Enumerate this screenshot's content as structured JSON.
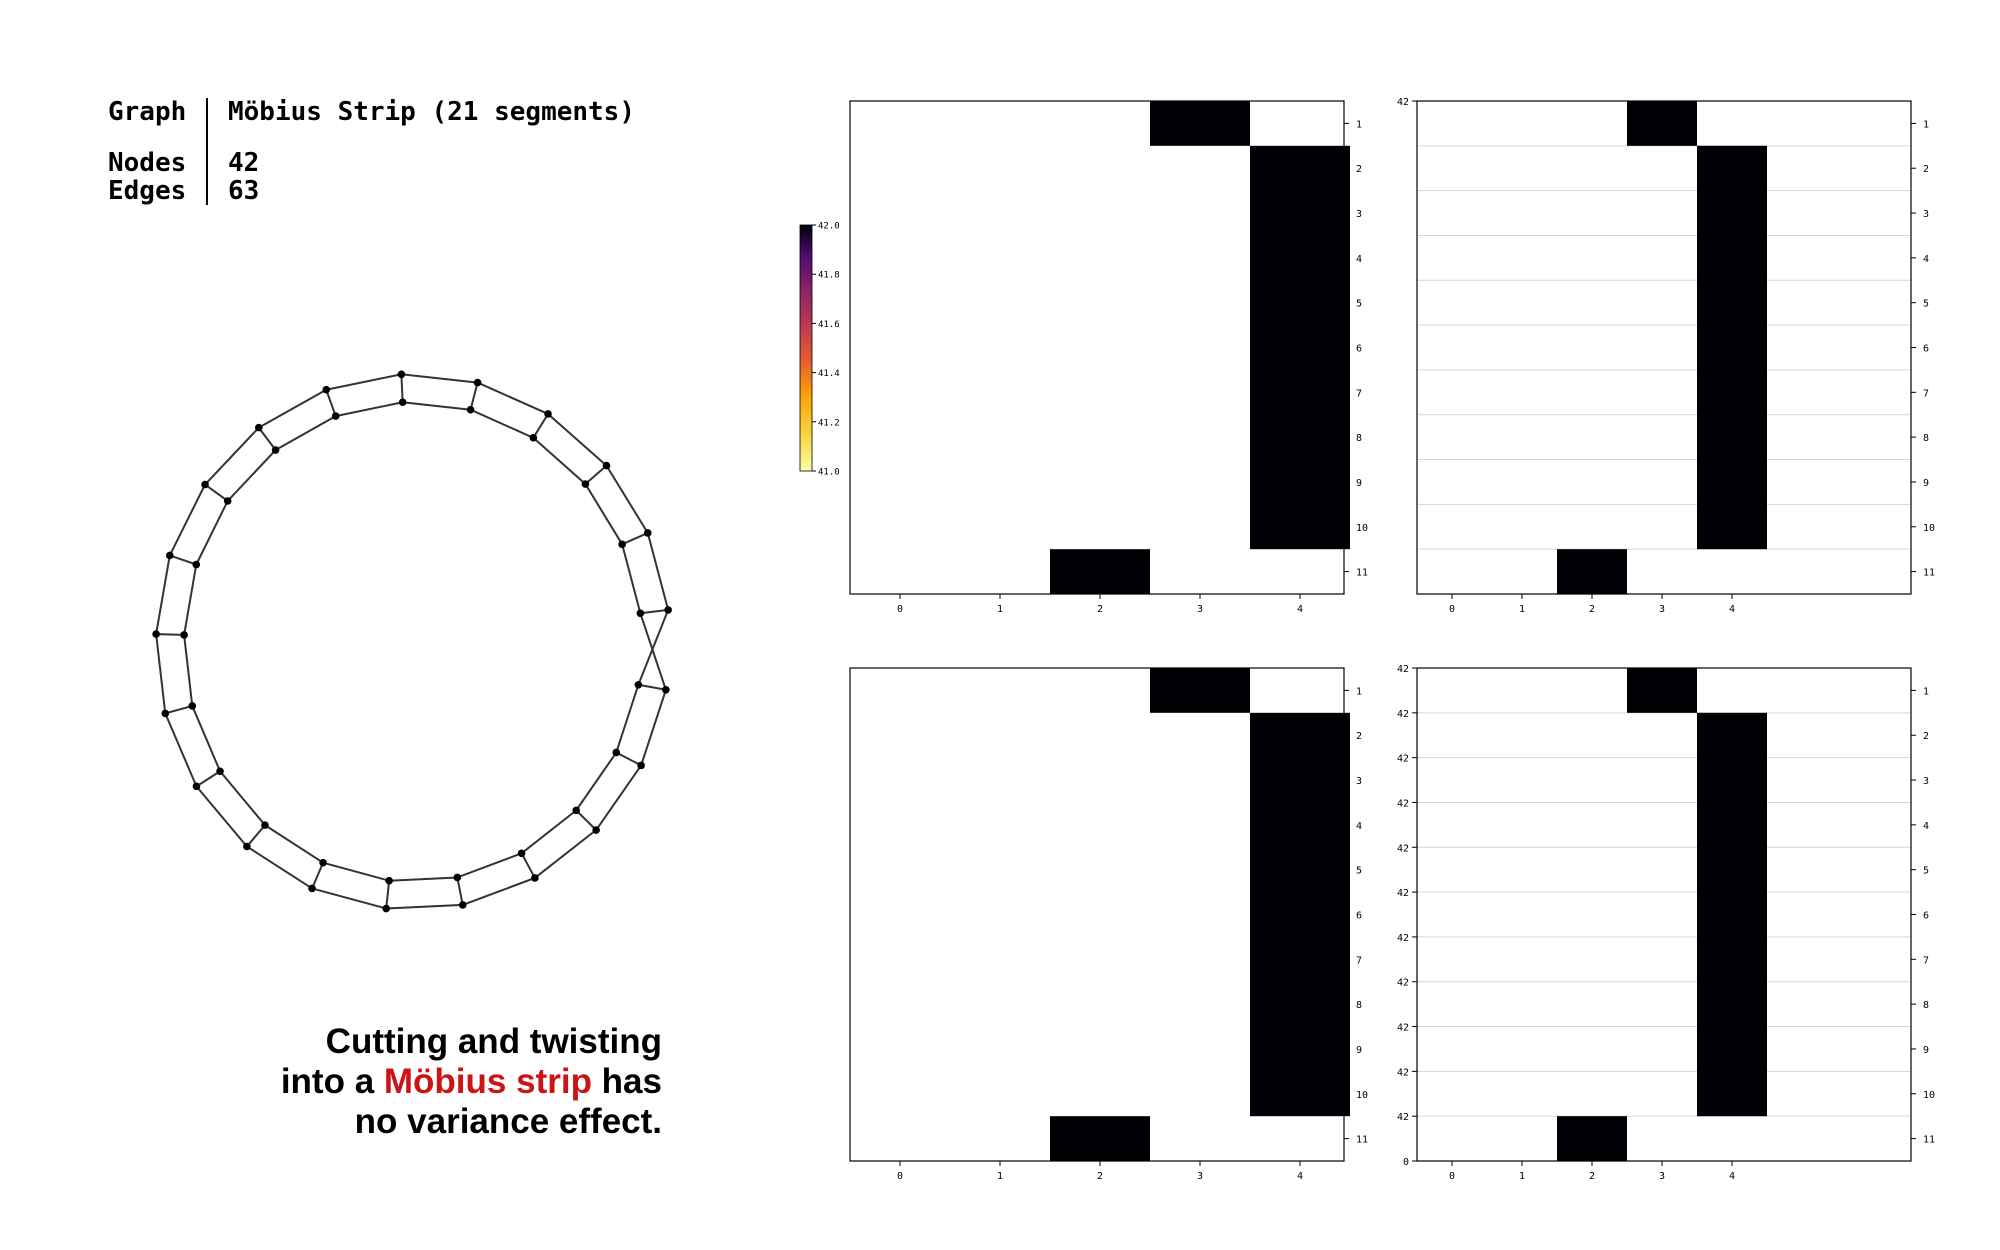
{
  "info": {
    "graph_label": "Graph",
    "graph_value": "Möbius Strip (21 segments)",
    "nodes_label": "Nodes",
    "nodes_value": "42",
    "edges_label": "Edges",
    "edges_value": "63"
  },
  "message": {
    "line1": "Cutting and twisting",
    "line2_pre": "into a ",
    "line2_highlight": "Möbius strip",
    "line2_post": " has",
    "line3": "no variance effect."
  },
  "colors": {
    "highlight": "#cc1414",
    "cell_on": "#000004",
    "cell_off": "#ffffff"
  },
  "colorbar": {
    "ticks": [
      "42.0",
      "41.8",
      "41.6",
      "41.4",
      "41.2",
      "41.0"
    ],
    "cmap": "inferno_r"
  },
  "chart_data": [
    {
      "type": "heatmap",
      "x_ticks": [
        "0",
        "1",
        "2",
        "3",
        "4"
      ],
      "y_ticks": [
        "1",
        "2",
        "3",
        "4",
        "5",
        "6",
        "7",
        "8",
        "9",
        "10",
        "11"
      ],
      "filled_cells": [
        {
          "row": 1,
          "col_from": 3,
          "col_to": 3
        },
        {
          "row_from": 2,
          "row_to": 10,
          "col": 4
        },
        {
          "row": 11,
          "col_from": 2,
          "col_to": 2
        }
      ]
    },
    {
      "type": "heatmap",
      "x_ticks": [
        "0",
        "1",
        "2",
        "3",
        "4"
      ],
      "y_ticks": [
        "1",
        "2",
        "3",
        "4",
        "5",
        "6",
        "7",
        "8",
        "9",
        "10",
        "11"
      ],
      "left_ticks": [
        "42"
      ]
    },
    {
      "type": "heatmap",
      "x_ticks": [
        "0",
        "1",
        "2",
        "3",
        "4"
      ],
      "y_ticks": [
        "1",
        "2",
        "3",
        "4",
        "5",
        "6",
        "7",
        "8",
        "9",
        "10",
        "11"
      ]
    },
    {
      "type": "heatmap",
      "x_ticks": [
        "0",
        "1",
        "2",
        "3",
        "4"
      ],
      "y_ticks": [
        "1",
        "2",
        "3",
        "4",
        "5",
        "6",
        "7",
        "8",
        "9",
        "10",
        "11"
      ],
      "left_ticks": [
        "42",
        "42",
        "42",
        "42",
        "42",
        "42",
        "42",
        "42",
        "42",
        "42",
        "42",
        "0"
      ]
    }
  ]
}
